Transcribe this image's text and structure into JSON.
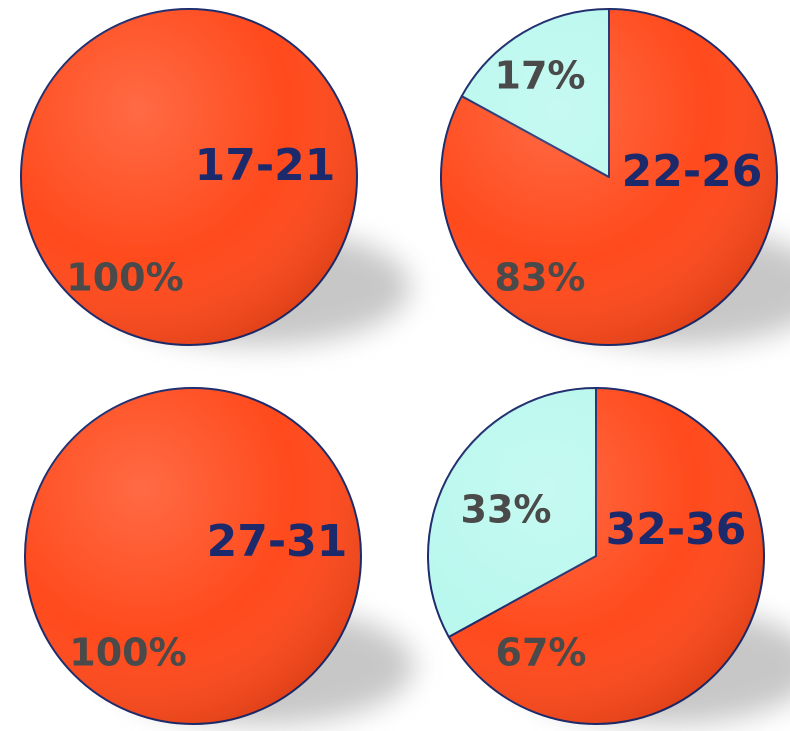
{
  "colors": {
    "primary_slice": "#ff4a1c",
    "secondary_slice": "#b9f8ee",
    "outline": "#1c2a6b",
    "category_label": "#1c2a6b",
    "percent_label": "#4a4a4a"
  },
  "chart_data": [
    {
      "type": "pie",
      "category": "17-21",
      "slices": [
        {
          "value": 100,
          "label": "100%",
          "color": "#ff4a1c"
        }
      ]
    },
    {
      "type": "pie",
      "category": "22-26",
      "slices": [
        {
          "value": 83,
          "label": "83%",
          "color": "#ff4a1c"
        },
        {
          "value": 17,
          "label": "17%",
          "color": "#b9f8ee"
        }
      ]
    },
    {
      "type": "pie",
      "category": "27-31",
      "slices": [
        {
          "value": 100,
          "label": "100%",
          "color": "#ff4a1c"
        }
      ]
    },
    {
      "type": "pie",
      "category": "32-36",
      "slices": [
        {
          "value": 67,
          "label": "67%",
          "color": "#ff4a1c"
        },
        {
          "value": 33,
          "label": "33%",
          "color": "#b9f8ee"
        }
      ]
    }
  ]
}
